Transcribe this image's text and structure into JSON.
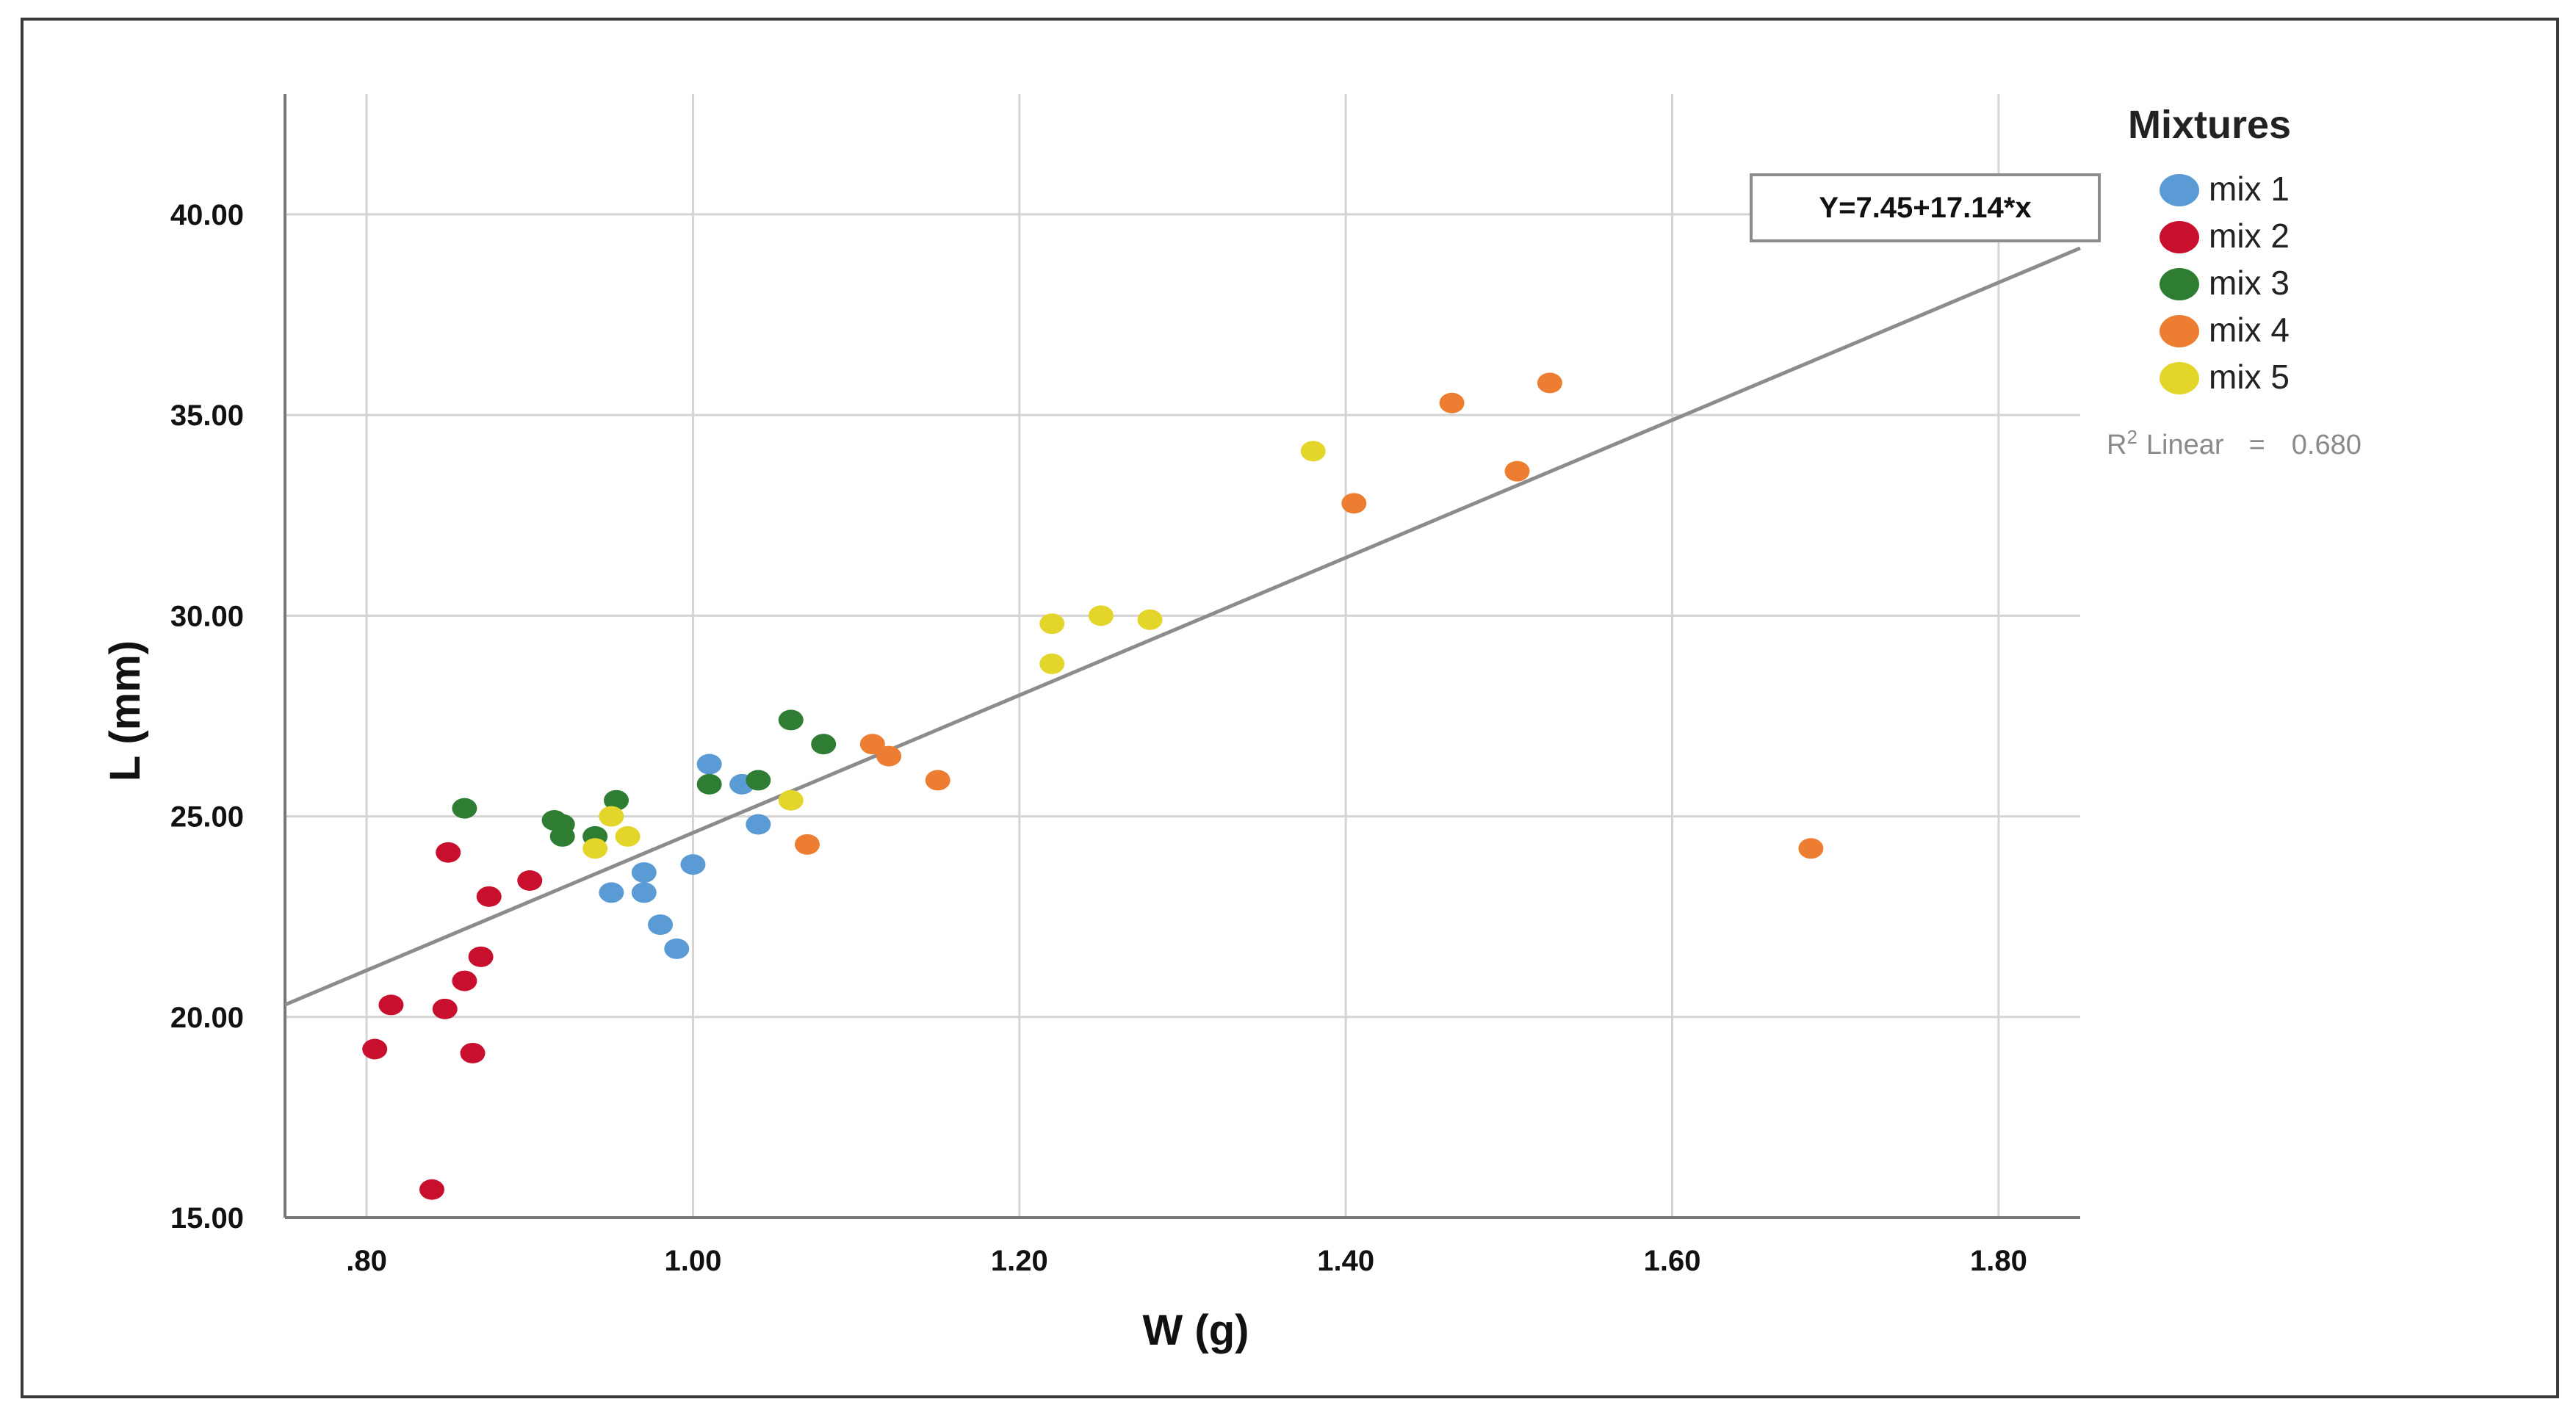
{
  "chart_data": {
    "type": "scatter",
    "xlabel": "W (g)",
    "ylabel": "L (mm)",
    "xlim": [
      0.75,
      1.85
    ],
    "ylim": [
      15,
      43
    ],
    "x_ticks": [
      0.8,
      1.0,
      1.2,
      1.4,
      1.6,
      1.8
    ],
    "x_tick_labels": [
      ".80",
      "1.00",
      "1.20",
      "1.40",
      "1.60",
      "1.80"
    ],
    "y_ticks": [
      15,
      20,
      25,
      30,
      35,
      40
    ],
    "y_tick_labels": [
      "15.00",
      "20.00",
      "25.00",
      "30.00",
      "35.00",
      "40.00"
    ],
    "grid": true,
    "legend": {
      "title": "Mixtures",
      "position": "top-right"
    },
    "series": [
      {
        "name": "mix 1",
        "color": "#5b9bd5",
        "points": [
          [
            1.01,
            26.3
          ],
          [
            1.03,
            25.8
          ],
          [
            1.04,
            24.8
          ],
          [
            1.0,
            23.8
          ],
          [
            0.97,
            23.6
          ],
          [
            0.95,
            23.1
          ],
          [
            0.97,
            23.1
          ],
          [
            0.98,
            22.3
          ],
          [
            0.99,
            21.7
          ]
        ]
      },
      {
        "name": "mix 2",
        "color": "#c8102e",
        "points": [
          [
            0.85,
            24.1
          ],
          [
            0.9,
            23.4
          ],
          [
            0.875,
            23.0
          ],
          [
            0.87,
            21.5
          ],
          [
            0.86,
            20.9
          ],
          [
            0.815,
            20.3
          ],
          [
            0.848,
            20.2
          ],
          [
            0.805,
            19.2
          ],
          [
            0.865,
            19.1
          ],
          [
            0.84,
            15.7
          ]
        ]
      },
      {
        "name": "mix 3",
        "color": "#2e7d32",
        "points": [
          [
            0.86,
            25.2
          ],
          [
            0.915,
            24.9
          ],
          [
            0.92,
            24.8
          ],
          [
            0.92,
            24.5
          ],
          [
            0.94,
            24.5
          ],
          [
            0.953,
            25.4
          ],
          [
            1.01,
            25.8
          ],
          [
            1.04,
            25.9
          ],
          [
            1.06,
            27.4
          ],
          [
            1.08,
            26.8
          ]
        ]
      },
      {
        "name": "mix 4",
        "color": "#ed7d31",
        "points": [
          [
            1.525,
            35.8
          ],
          [
            1.465,
            35.3
          ],
          [
            1.505,
            33.6
          ],
          [
            1.405,
            32.8
          ],
          [
            1.11,
            26.8
          ],
          [
            1.12,
            26.5
          ],
          [
            1.15,
            25.9
          ],
          [
            1.07,
            24.3
          ],
          [
            1.685,
            24.2
          ]
        ]
      },
      {
        "name": "mix 5",
        "color": "#e4d52b",
        "points": [
          [
            1.38,
            34.1
          ],
          [
            1.22,
            29.8
          ],
          [
            1.25,
            30.0
          ],
          [
            1.28,
            29.9
          ],
          [
            1.22,
            28.8
          ],
          [
            1.06,
            25.4
          ],
          [
            0.95,
            25.0
          ],
          [
            0.96,
            24.5
          ],
          [
            0.94,
            24.2
          ]
        ]
      }
    ],
    "fit_line": {
      "intercept": 7.45,
      "slope": 17.14,
      "color": "#8c8c8c",
      "equation_label": "Y=7.45+17.14*x"
    },
    "r2": {
      "label_html": "R² Linear",
      "label": "R",
      "sup": "2",
      "suffix": "Linear",
      "eq": "=",
      "value": "0.680"
    }
  }
}
